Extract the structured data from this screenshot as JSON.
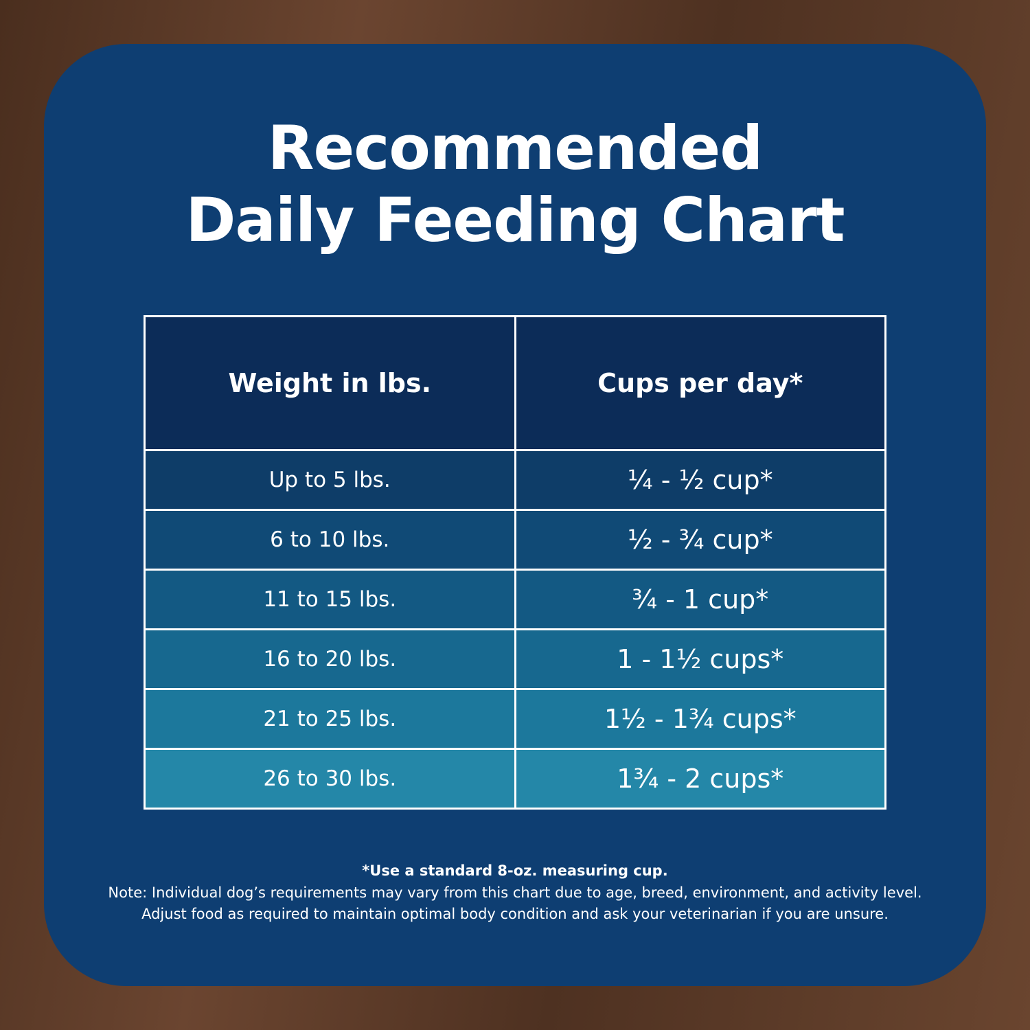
{
  "header": {
    "title_line1": "Recommended",
    "title_line2": "Daily Feeding Chart"
  },
  "table": {
    "columns": [
      "Weight in lbs.",
      "Cups per day*"
    ],
    "rows": [
      [
        "Up to 5 lbs.",
        "¼ - ½ cup*"
      ],
      [
        "6 to 10 lbs.",
        "½ - ¾ cup*"
      ],
      [
        "11 to 15 lbs.",
        "¾ - 1 cup*"
      ],
      [
        "16 to 20 lbs.",
        "1 - 1½ cups*"
      ],
      [
        "21 to 25 lbs.",
        "1½ - 1¾ cups*"
      ],
      [
        "26 to 30 lbs.",
        "1¾ - 2 cups*"
      ]
    ]
  },
  "footer": {
    "footnote": "*Use a standard 8-oz. measuring cup.",
    "note_line1": "Note: Individual dog’s requirements may vary from this chart due to age, breed, environment, and activity level.",
    "note_line2": "Adjust food as required to maintain optimal body condition and ask your veterinarian if you are unsure."
  }
}
